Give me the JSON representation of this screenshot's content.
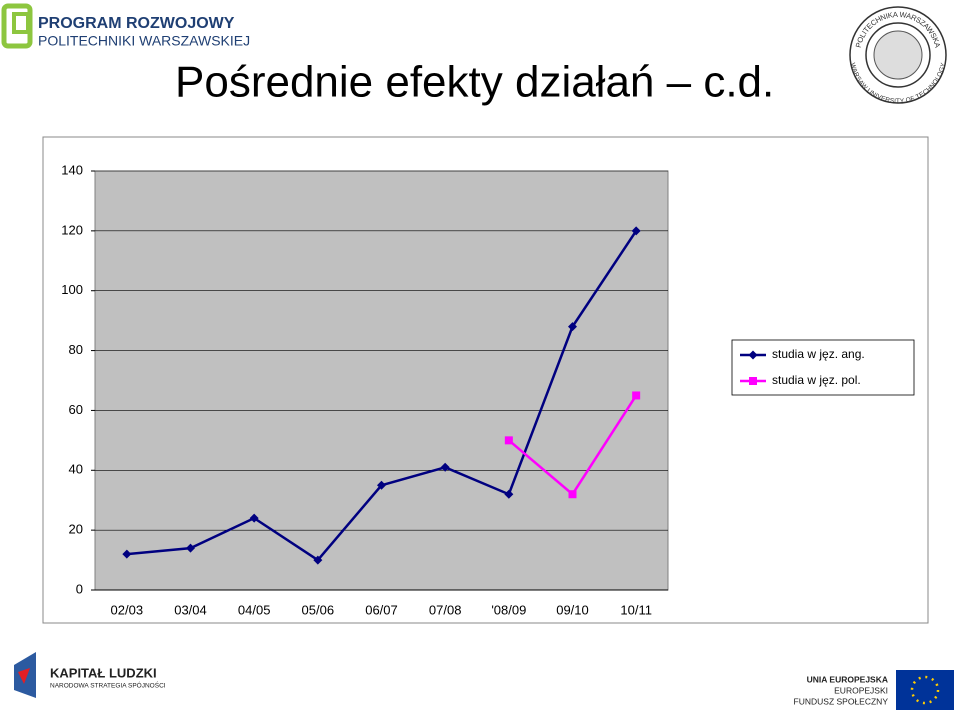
{
  "header": {
    "logo_line1": "PROGRAM ROZWOJOWY",
    "logo_line2": "POLITECHNIKI WARSZAWSKIEJ",
    "seal_top": "POLITECHNIKA WARSZAWSKA",
    "seal_bottom": "WARSAW UNIVERSITY OF TECHNOLOGY"
  },
  "title": "Pośrednie efekty działań – c.d.",
  "chart_data": {
    "type": "line",
    "categories": [
      "02/03",
      "03/04",
      "04/05",
      "05/06",
      "06/07",
      "07/08",
      "'08/09",
      "09/10",
      "10/11"
    ],
    "series": [
      {
        "name": "studia w jęz. ang.",
        "color": "#000080",
        "marker": "diamond",
        "values": [
          12,
          14,
          24,
          10,
          35,
          41,
          32,
          88,
          120
        ]
      },
      {
        "name": "studia w jęz. pol.",
        "color": "#ff00ff",
        "marker": "square",
        "values": [
          null,
          null,
          null,
          null,
          null,
          null,
          50,
          32,
          65
        ]
      }
    ],
    "ylim": [
      0,
      140
    ],
    "yticks": [
      0,
      20,
      40,
      60,
      80,
      100,
      120,
      140
    ],
    "grid": true,
    "legend": "right",
    "plot_background": "#c0c0c0"
  },
  "footer": {
    "kl_title": "KAPITAŁ LUDZKI",
    "kl_sub": "NARODOWA STRATEGIA SPÓJNOŚCI",
    "eu_line1": "UNIA EUROPEJSKA",
    "eu_line2": "EUROPEJSKI",
    "eu_line3": "FUNDUSZ SPOŁECZNY"
  }
}
